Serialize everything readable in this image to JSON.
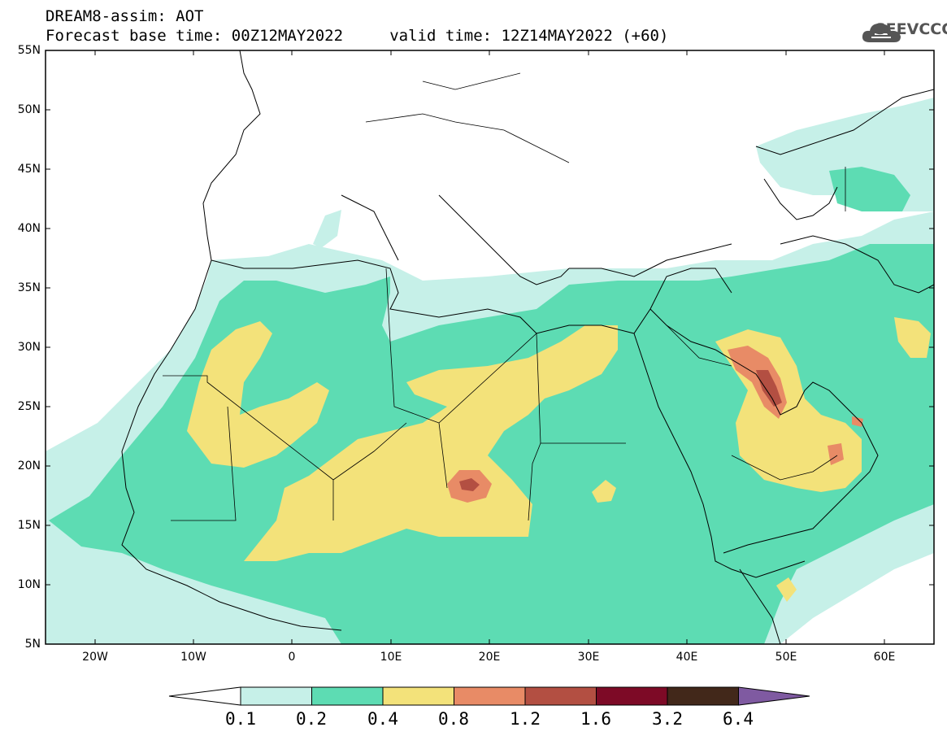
{
  "header": {
    "line1": "DREAM8-assim: AOT",
    "line2": "Forecast base time: 00Z12MAY2022     valid time: 12Z14MAY2022 (+60)"
  },
  "logo": {
    "text": "SEEVCCC",
    "icon": "cloud-icon"
  },
  "map": {
    "lat_labels": [
      "55N",
      "50N",
      "45N",
      "40N",
      "35N",
      "30N",
      "25N",
      "20N",
      "15N",
      "10N",
      "5N"
    ],
    "lon_labels": [
      "20W",
      "10W",
      "0",
      "10E",
      "20E",
      "30E",
      "40E",
      "50E",
      "60E"
    ]
  },
  "colorbar": {
    "levels": [
      "0.1",
      "0.2",
      "0.4",
      "0.8",
      "1.2",
      "1.6",
      "3.2",
      "6.4"
    ],
    "colors": [
      "#c6f0e8",
      "#5ddcb3",
      "#f3e27a",
      "#e88b66",
      "#b34f42",
      "#7d0a26",
      "#42281a",
      "#7f5aa1"
    ]
  }
}
